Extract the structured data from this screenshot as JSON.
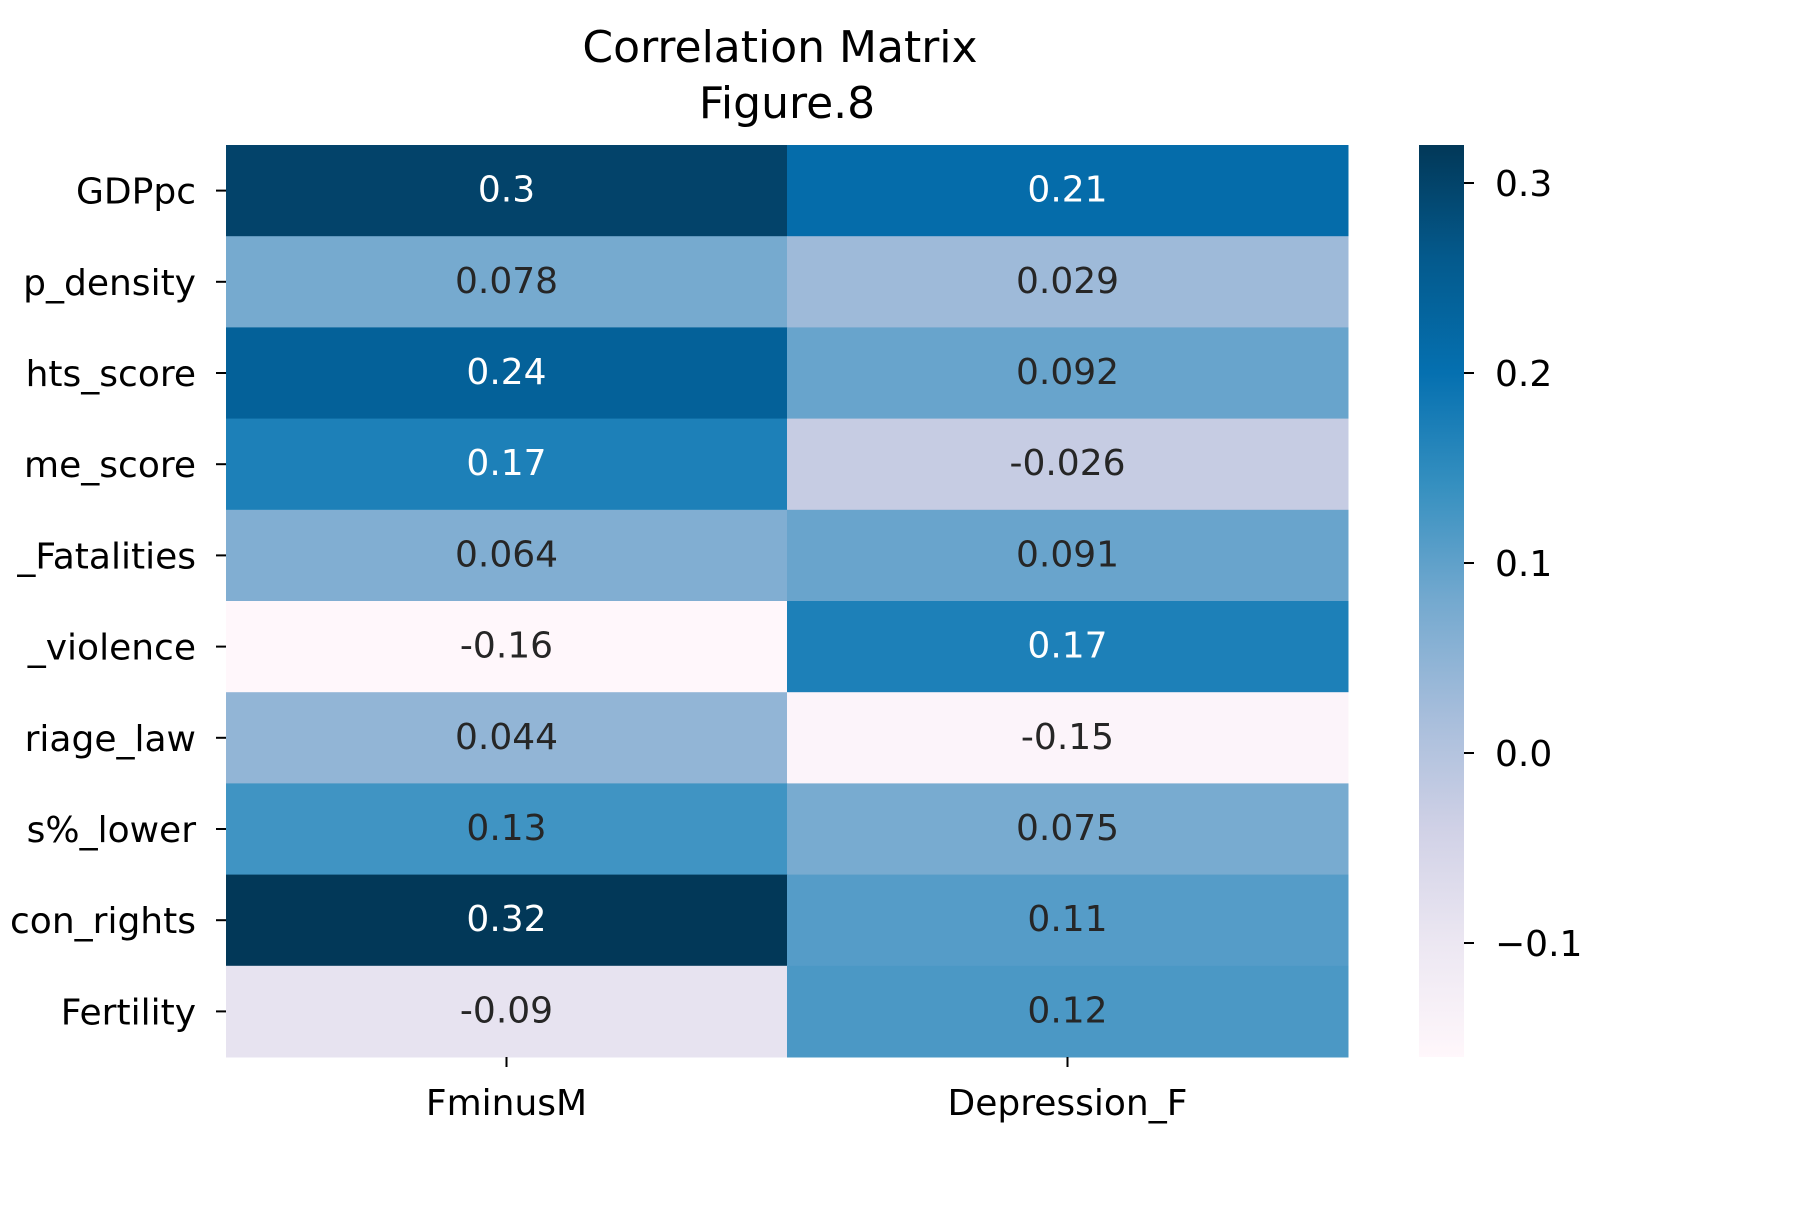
{
  "chart_data": {
    "type": "heatmap",
    "title": "Correlation Matrix",
    "subtitle": "Figure.8",
    "x_categories": [
      "FminusM",
      "Depression_F"
    ],
    "y_categories": [
      "GDPpc",
      "p_density",
      "hts_score",
      "me_score",
      "_Fatalities",
      "_violence",
      "riage_law",
      "s%_lower",
      "con_rights",
      "Fertility"
    ],
    "values": [
      [
        0.3,
        0.21
      ],
      [
        0.078,
        0.029
      ],
      [
        0.24,
        0.092
      ],
      [
        0.17,
        -0.026
      ],
      [
        0.064,
        0.091
      ],
      [
        -0.16,
        0.17
      ],
      [
        0.044,
        -0.15
      ],
      [
        0.13,
        0.075
      ],
      [
        0.32,
        0.11
      ],
      [
        -0.09,
        0.12
      ]
    ],
    "value_labels": [
      [
        "0.3",
        "0.21"
      ],
      [
        "0.078",
        "0.029"
      ],
      [
        "0.24",
        "0.092"
      ],
      [
        "0.17",
        "-0.026"
      ],
      [
        "0.064",
        "0.091"
      ],
      [
        "-0.16",
        "0.17"
      ],
      [
        "0.044",
        "-0.15"
      ],
      [
        "0.13",
        "0.075"
      ],
      [
        "0.32",
        "0.11"
      ],
      [
        "-0.09",
        "0.12"
      ]
    ],
    "colorbar": {
      "range": [
        -0.16,
        0.32
      ],
      "ticks": [
        0.3,
        0.2,
        0.1,
        0.0,
        -0.1
      ],
      "tick_labels": [
        "0.3",
        "0.2",
        "0.1",
        "0.0",
        "−0.1"
      ]
    },
    "colormap": [
      "#fff7fb",
      "#ece7f2",
      "#d0d1e6",
      "#a6bddb",
      "#74a9cf",
      "#3690c0",
      "#0570b0",
      "#045a8d",
      "#023858"
    ],
    "annotation_colors": {
      "dark": "#262626",
      "light": "#ffffff"
    }
  }
}
